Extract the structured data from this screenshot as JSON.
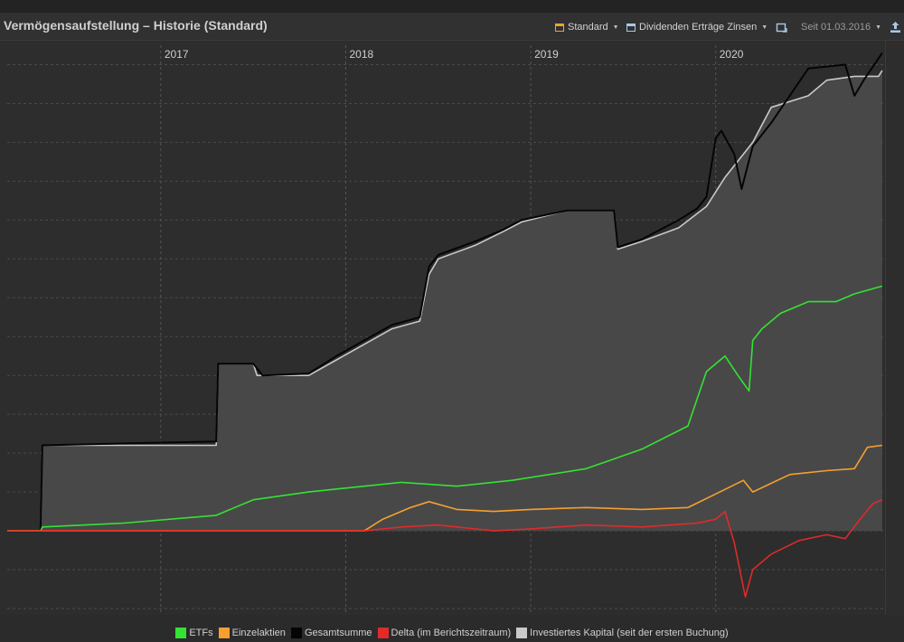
{
  "header": {
    "title": "Vermögensaufstellung – Historie (Standard)",
    "standard_label": "Standard",
    "dividends_label": "Dividenden Erträge Zinsen",
    "since_label": "Seit 01.03.2016",
    "standard_icon": "square-calendar-icon",
    "dividends_icon": "square-calendar-icon",
    "export_icon": "export-icon",
    "refresh_icon": "refresh-icon",
    "accent_orange": "#f5a030",
    "accent_blue": "#a9c8e8"
  },
  "chart_data": {
    "type": "line",
    "title": "",
    "x_ticks": [
      "2017",
      "2018",
      "2019",
      "2020"
    ],
    "x_tick_dates": [
      2017.0,
      2018.0,
      2019.0,
      2020.0
    ],
    "xlim": [
      2016.17,
      2020.92
    ],
    "ylim": [
      -2,
      12.5
    ],
    "y_tick_labels": [],
    "grid": true,
    "legend_position": "bottom",
    "series": [
      {
        "name": "ETFs",
        "color": "#34e234",
        "x": [
          2016.17,
          2016.35,
          2016.36,
          2016.8,
          2017.3,
          2017.5,
          2017.8,
          2018.0,
          2018.3,
          2018.6,
          2018.9,
          2019.3,
          2019.6,
          2019.85,
          2019.95,
          2020.05,
          2020.12,
          2020.18,
          2020.2,
          2020.25,
          2020.35,
          2020.5,
          2020.65,
          2020.75,
          2020.9
        ],
        "y": [
          0,
          0,
          0.1,
          0.2,
          0.4,
          0.8,
          1.0,
          1.1,
          1.25,
          1.15,
          1.3,
          1.6,
          2.1,
          2.7,
          4.1,
          4.5,
          4.0,
          3.6,
          4.9,
          5.2,
          5.6,
          5.9,
          5.9,
          6.1,
          6.3
        ]
      },
      {
        "name": "Einzelaktien",
        "color": "#f5a030",
        "x": [
          2016.17,
          2018.1,
          2018.2,
          2018.35,
          2018.45,
          2018.6,
          2018.8,
          2019.0,
          2019.3,
          2019.6,
          2019.85,
          2020.0,
          2020.15,
          2020.2,
          2020.4,
          2020.6,
          2020.75,
          2020.82,
          2020.9
        ],
        "y": [
          0,
          0,
          0.3,
          0.6,
          0.75,
          0.55,
          0.5,
          0.55,
          0.6,
          0.55,
          0.6,
          0.95,
          1.3,
          1.0,
          1.45,
          1.55,
          1.6,
          2.15,
          2.2
        ]
      },
      {
        "name": "Gesamtsumme",
        "color": "#050505",
        "x": [
          2016.17,
          2016.35,
          2016.36,
          2016.8,
          2017.3,
          2017.31,
          2017.5,
          2017.55,
          2017.8,
          2017.95,
          2018.1,
          2018.25,
          2018.4,
          2018.45,
          2018.5,
          2018.7,
          2018.85,
          2018.95,
          2019.2,
          2019.45,
          2019.47,
          2019.6,
          2019.8,
          2019.9,
          2019.95,
          2020.0,
          2020.03,
          2020.1,
          2020.14,
          2020.2,
          2020.3,
          2020.5,
          2020.7,
          2020.75,
          2020.8,
          2020.9
        ],
        "y": [
          0,
          0,
          2.2,
          2.25,
          2.3,
          4.3,
          4.3,
          4.0,
          4.05,
          4.5,
          4.9,
          5.3,
          5.5,
          6.8,
          7.1,
          7.45,
          7.75,
          8.0,
          8.25,
          8.25,
          7.3,
          7.5,
          8.0,
          8.3,
          8.6,
          10.1,
          10.3,
          9.7,
          8.8,
          9.9,
          10.5,
          11.9,
          12.0,
          11.2,
          11.6,
          12.3
        ]
      },
      {
        "name": "Delta (im Berichtszeitraum)",
        "color": "#e12a2a",
        "x": [
          2016.17,
          2018.1,
          2018.3,
          2018.5,
          2018.8,
          2019.0,
          2019.3,
          2019.6,
          2019.9,
          2020.0,
          2020.05,
          2020.1,
          2020.16,
          2020.2,
          2020.3,
          2020.45,
          2020.6,
          2020.7,
          2020.78,
          2020.85,
          2020.9
        ],
        "y": [
          0,
          0,
          0.1,
          0.15,
          0.0,
          0.05,
          0.15,
          0.1,
          0.2,
          0.3,
          0.5,
          -0.3,
          -1.7,
          -1.0,
          -0.6,
          -0.25,
          -0.1,
          -0.2,
          0.3,
          0.7,
          0.8
        ]
      },
      {
        "name": "Investiertes Kapital (seit der ersten Buchung)",
        "color": "#c9c9c9",
        "x": [
          2016.17,
          2016.35,
          2016.36,
          2017.3,
          2017.31,
          2017.5,
          2017.52,
          2017.8,
          2017.95,
          2018.1,
          2018.25,
          2018.4,
          2018.45,
          2018.5,
          2018.7,
          2018.85,
          2018.95,
          2019.2,
          2019.45,
          2019.47,
          2019.6,
          2019.8,
          2019.95,
          2020.05,
          2020.2,
          2020.3,
          2020.5,
          2020.6,
          2020.75,
          2020.88,
          2020.9
        ],
        "y": [
          0,
          0,
          2.2,
          2.2,
          4.3,
          4.3,
          4.0,
          4.0,
          4.4,
          4.8,
          5.2,
          5.4,
          6.6,
          7.0,
          7.35,
          7.7,
          7.95,
          8.25,
          8.25,
          7.25,
          7.45,
          7.8,
          8.35,
          9.1,
          10.0,
          10.9,
          11.2,
          11.6,
          11.7,
          11.7,
          11.85
        ]
      }
    ]
  },
  "legend": [
    {
      "label": "ETFs",
      "color": "#34e234"
    },
    {
      "label": "Einzelaktien",
      "color": "#f5a030"
    },
    {
      "label": "Gesamtsumme",
      "color": "#050505"
    },
    {
      "label": "Delta (im Berichtszeitraum)",
      "color": "#e12a2a"
    },
    {
      "label": "Investiertes Kapital (seit der ersten Buchung)",
      "color": "#c9c9c9"
    }
  ]
}
